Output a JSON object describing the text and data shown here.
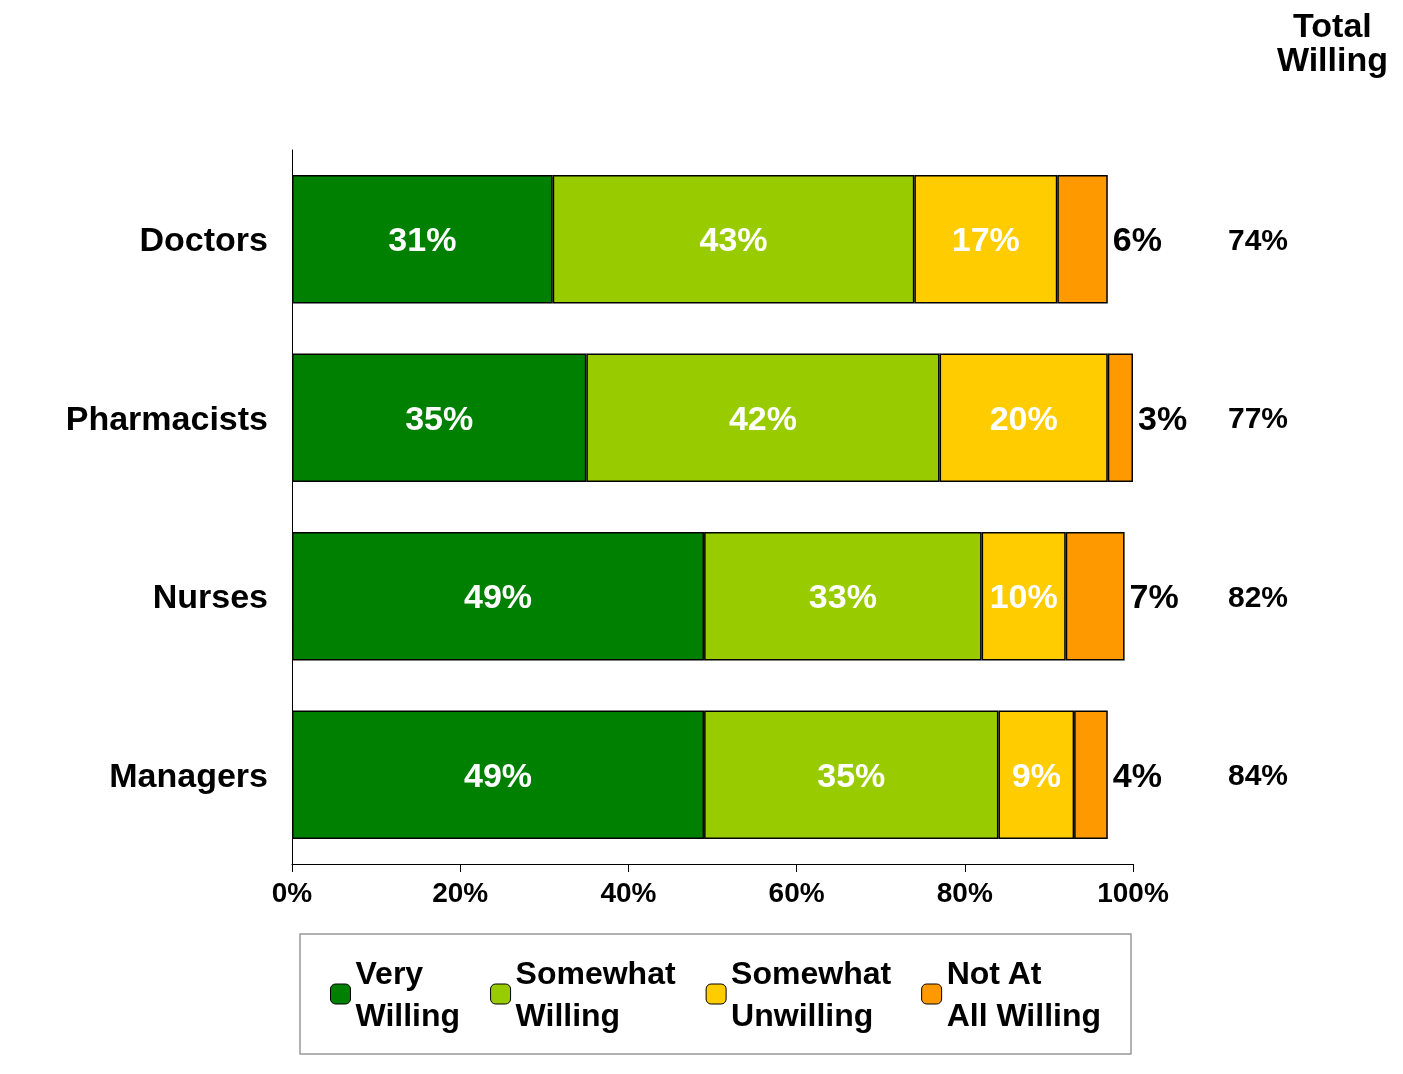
{
  "chart_data": {
    "type": "bar",
    "orientation": "horizontal",
    "stacked": true,
    "categories": [
      "Doctors",
      "Pharmacists",
      "Nurses",
      "Managers"
    ],
    "series": [
      {
        "name": "Very Willing",
        "color": "#008000",
        "values": [
          31,
          35,
          49,
          49
        ],
        "value_labels": [
          "31%",
          "35%",
          "49%",
          "49%"
        ]
      },
      {
        "name": "Somewhat Willing",
        "color": "#99cc00",
        "values": [
          43,
          42,
          33,
          35
        ],
        "value_labels": [
          "43%",
          "42%",
          "33%",
          "35%"
        ]
      },
      {
        "name": "Somewhat Unwilling",
        "color": "#ffcc00",
        "values": [
          17,
          20,
          10,
          9
        ],
        "value_labels": [
          "17%",
          "20%",
          "10%",
          "9%"
        ]
      },
      {
        "name": "Not At All Willing",
        "color": "#ff9900",
        "values": [
          6,
          3,
          7,
          4
        ],
        "value_labels": [
          "6%",
          "3%",
          "7%",
          "4%"
        ]
      }
    ],
    "annotations": [
      "Total Willing",
      "74%",
      "77%",
      "82%",
      "84%"
    ],
    "xlim": [
      0,
      100
    ],
    "xticks": [
      {
        "value": 0,
        "label": "0%"
      },
      {
        "value": 20,
        "label": "20%"
      },
      {
        "value": 40,
        "label": "40%"
      },
      {
        "value": 60,
        "label": "60%"
      },
      {
        "value": 80,
        "label": "80%"
      },
      {
        "value": 100,
        "label": "100%"
      }
    ],
    "grid": false,
    "legend": "bottom"
  }
}
